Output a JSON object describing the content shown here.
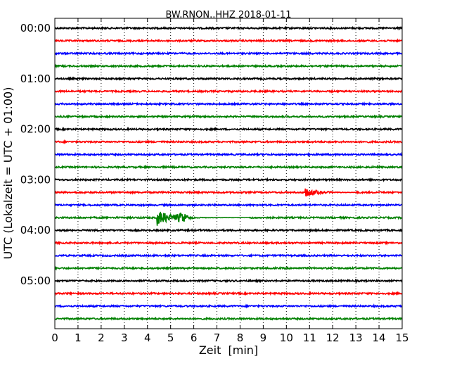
{
  "chart_data": {
    "type": "line",
    "title": "BW.RNON..HHZ 2018-01-11",
    "xlabel": "Zeit  [min]",
    "ylabel": "UTC (Lokalzeit = UTC + 01:00)",
    "xlim": [
      0,
      15
    ],
    "x_ticks": [
      "0",
      "1",
      "2",
      "3",
      "4",
      "5",
      "6",
      "7",
      "8",
      "9",
      "10",
      "11",
      "12",
      "13",
      "14",
      "15"
    ],
    "y_ticks": [
      "00:00",
      "01:00",
      "02:00",
      "03:00",
      "04:00",
      "05:00"
    ],
    "grid": "vertical dotted",
    "trace_colors": [
      "#000000",
      "#ff0000",
      "#0000ff",
      "#008000"
    ],
    "traces": [
      {
        "start": "00:00",
        "color": "#000000"
      },
      {
        "start": "00:15",
        "color": "#ff0000"
      },
      {
        "start": "00:30",
        "color": "#0000ff"
      },
      {
        "start": "00:45",
        "color": "#008000"
      },
      {
        "start": "01:00",
        "color": "#000000"
      },
      {
        "start": "01:15",
        "color": "#ff0000"
      },
      {
        "start": "01:30",
        "color": "#0000ff"
      },
      {
        "start": "01:45",
        "color": "#008000"
      },
      {
        "start": "02:00",
        "color": "#000000"
      },
      {
        "start": "02:15",
        "color": "#ff0000"
      },
      {
        "start": "02:30",
        "color": "#0000ff"
      },
      {
        "start": "02:45",
        "color": "#008000"
      },
      {
        "start": "03:00",
        "color": "#000000"
      },
      {
        "start": "03:15",
        "color": "#ff0000",
        "event": {
          "onset_min": 10.8,
          "duration_min": 2.2,
          "amplitude": 0.55
        }
      },
      {
        "start": "03:30",
        "color": "#0000ff"
      },
      {
        "start": "03:45",
        "color": "#008000",
        "event": {
          "onset_min": 4.4,
          "duration_min": 4.0,
          "amplitude": 1.0
        }
      },
      {
        "start": "04:00",
        "color": "#000000"
      },
      {
        "start": "04:15",
        "color": "#ff0000"
      },
      {
        "start": "04:30",
        "color": "#0000ff"
      },
      {
        "start": "04:45",
        "color": "#008000"
      },
      {
        "start": "05:00",
        "color": "#000000"
      },
      {
        "start": "05:15",
        "color": "#ff0000"
      },
      {
        "start": "05:30",
        "color": "#0000ff"
      },
      {
        "start": "05:45",
        "color": "#008000"
      }
    ]
  }
}
